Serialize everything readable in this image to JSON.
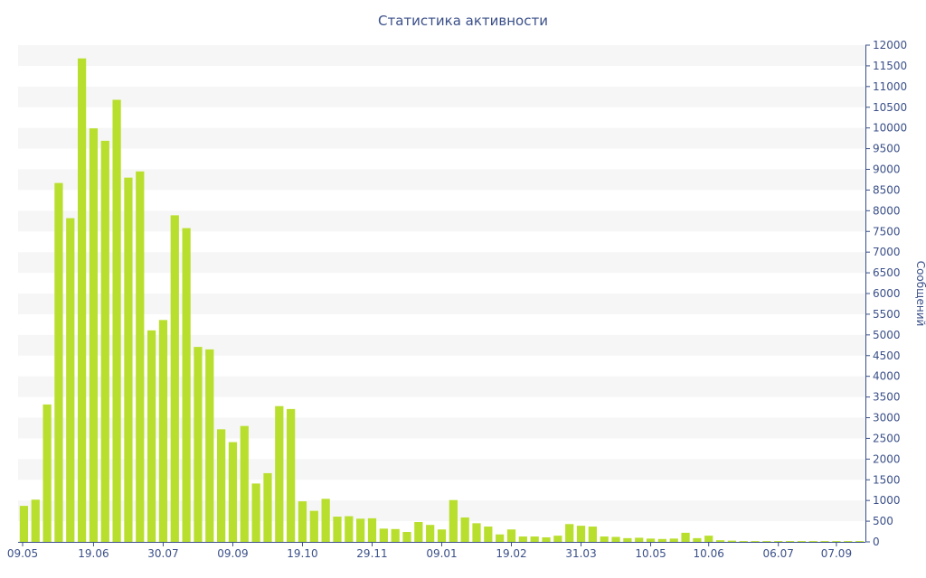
{
  "chart_data": {
    "type": "bar",
    "title": "Статистика активности",
    "ylabel": "Сообщений",
    "xlabel": "",
    "ylim": [
      0,
      12000
    ],
    "y_ticks": [
      0,
      500,
      1000,
      1500,
      2000,
      2500,
      3000,
      3500,
      4000,
      4500,
      5000,
      5500,
      6000,
      6500,
      7000,
      7500,
      8000,
      8500,
      9000,
      9500,
      10000,
      10500,
      11000,
      11500,
      12000
    ],
    "y_axis_side": "right",
    "grid": "alternating horizontal bands",
    "x_tick_labels": [
      {
        "label": "09.05",
        "index": 0
      },
      {
        "label": "19.06",
        "index": 6
      },
      {
        "label": "30.07",
        "index": 12
      },
      {
        "label": "09.09",
        "index": 18
      },
      {
        "label": "19.10",
        "index": 24
      },
      {
        "label": "29.11",
        "index": 30
      },
      {
        "label": "09.01",
        "index": 36
      },
      {
        "label": "19.02",
        "index": 42
      },
      {
        "label": "31.03",
        "index": 48
      },
      {
        "label": "10.05",
        "index": 54
      },
      {
        "label": "10.06",
        "index": 59
      },
      {
        "label": "06.07",
        "index": 65
      },
      {
        "label": "07.09",
        "index": 70
      }
    ],
    "bar_color": "#b9df2e",
    "values": [
      870,
      1020,
      3320,
      8670,
      7820,
      11680,
      9990,
      9690,
      10680,
      8800,
      8950,
      5110,
      5360,
      7890,
      7580,
      4710,
      4650,
      2720,
      2410,
      2800,
      1410,
      1660,
      3280,
      3210,
      980,
      750,
      1040,
      610,
      620,
      560,
      570,
      320,
      310,
      240,
      480,
      410,
      300,
      1010,
      590,
      450,
      370,
      180,
      300,
      130,
      130,
      110,
      150,
      430,
      390,
      370,
      130,
      120,
      90,
      100,
      80,
      70,
      80,
      220,
      90,
      150,
      40,
      30,
      20,
      20,
      20,
      20,
      20,
      20,
      20,
      20,
      20,
      20,
      20
    ]
  }
}
